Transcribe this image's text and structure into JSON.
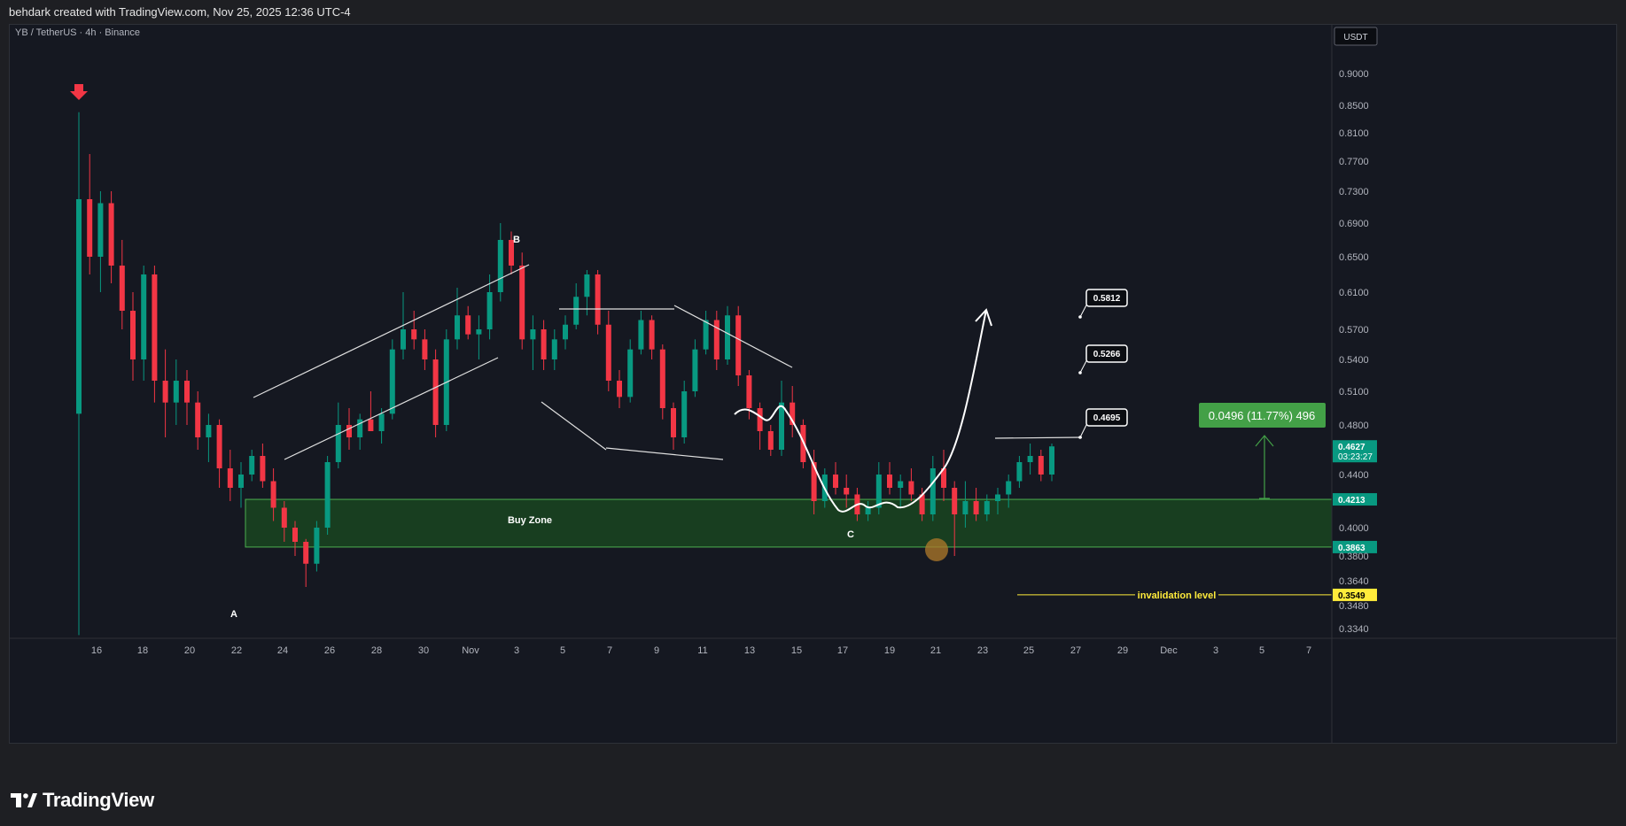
{
  "header": {
    "attribution": "behdark created with TradingView.com, Nov 25, 2025 12:36 UTC-4"
  },
  "footer": {
    "brand": "TradingView"
  },
  "chart_data": {
    "type": "candlestick",
    "symbol": "YB / TetherUS · 4h · Binance",
    "currency_button": "USDT",
    "price_axis_labels": [
      "0.9000",
      "0.8500",
      "0.8100",
      "0.7700",
      "0.7300",
      "0.6900",
      "0.6500",
      "0.6100",
      "0.5700",
      "0.5400",
      "0.5100",
      "0.4800",
      "0.4400",
      "0.4000",
      "0.3800",
      "0.3640",
      "0.3480",
      "0.3340"
    ],
    "time_axis_labels": [
      "16",
      "18",
      "20",
      "22",
      "24",
      "26",
      "28",
      "30",
      "Nov",
      "3",
      "5",
      "7",
      "9",
      "11",
      "13",
      "15",
      "17",
      "19",
      "21",
      "23",
      "25",
      "27",
      "29",
      "Dec",
      "3",
      "5",
      "7"
    ],
    "price_tags": [
      {
        "value": "0.4627",
        "sub": "03:23:27",
        "color": "#089981"
      },
      {
        "value": "0.4213",
        "color": "#089981"
      },
      {
        "value": "0.3863",
        "color": "#089981"
      },
      {
        "value": "0.3549",
        "color": "#ffeb3b"
      }
    ],
    "annotations": {
      "wave_labels": [
        "A",
        "B",
        "C"
      ],
      "buy_zone_label": "Buy Zone",
      "buy_zone_range": [
        0.3863,
        0.4213
      ],
      "invalidation_label": "invalidation level",
      "invalidation_price": 0.3549,
      "targets": [
        "0.4695",
        "0.5266",
        "0.5812"
      ],
      "measure_label": "0.0496 (11.77%) 496"
    },
    "colors": {
      "up": "#089981",
      "down": "#f23645",
      "background": "#151821",
      "zone": "#1b5e20",
      "accent": "#43a047",
      "invalidation": "#ffeb3b"
    },
    "candles": [
      [
        0.49,
        0.84,
        0.33,
        0.72
      ],
      [
        0.72,
        0.78,
        0.63,
        0.65
      ],
      [
        0.65,
        0.73,
        0.61,
        0.715
      ],
      [
        0.715,
        0.73,
        0.62,
        0.64
      ],
      [
        0.64,
        0.67,
        0.57,
        0.59
      ],
      [
        0.59,
        0.61,
        0.52,
        0.54
      ],
      [
        0.54,
        0.64,
        0.52,
        0.63
      ],
      [
        0.63,
        0.64,
        0.5,
        0.52
      ],
      [
        0.52,
        0.55,
        0.47,
        0.5
      ],
      [
        0.5,
        0.54,
        0.48,
        0.52
      ],
      [
        0.52,
        0.53,
        0.48,
        0.5
      ],
      [
        0.5,
        0.51,
        0.46,
        0.47
      ],
      [
        0.47,
        0.49,
        0.45,
        0.48
      ],
      [
        0.48,
        0.485,
        0.43,
        0.445
      ],
      [
        0.445,
        0.46,
        0.42,
        0.43
      ],
      [
        0.43,
        0.45,
        0.415,
        0.44
      ],
      [
        0.44,
        0.46,
        0.435,
        0.455
      ],
      [
        0.455,
        0.465,
        0.43,
        0.435
      ],
      [
        0.435,
        0.445,
        0.405,
        0.415
      ],
      [
        0.415,
        0.42,
        0.39,
        0.4
      ],
      [
        0.4,
        0.405,
        0.38,
        0.39
      ],
      [
        0.39,
        0.392,
        0.36,
        0.375
      ],
      [
        0.375,
        0.405,
        0.37,
        0.4
      ],
      [
        0.4,
        0.455,
        0.395,
        0.45
      ],
      [
        0.45,
        0.5,
        0.445,
        0.48
      ],
      [
        0.48,
        0.495,
        0.46,
        0.47
      ],
      [
        0.47,
        0.49,
        0.46,
        0.485
      ],
      [
        0.485,
        0.51,
        0.475,
        0.475
      ],
      [
        0.475,
        0.495,
        0.465,
        0.49
      ],
      [
        0.49,
        0.56,
        0.485,
        0.55
      ],
      [
        0.55,
        0.61,
        0.54,
        0.57
      ],
      [
        0.57,
        0.59,
        0.55,
        0.56
      ],
      [
        0.56,
        0.57,
        0.53,
        0.54
      ],
      [
        0.54,
        0.55,
        0.47,
        0.48
      ],
      [
        0.48,
        0.57,
        0.475,
        0.56
      ],
      [
        0.56,
        0.615,
        0.55,
        0.585
      ],
      [
        0.585,
        0.595,
        0.56,
        0.565
      ],
      [
        0.565,
        0.585,
        0.54,
        0.57
      ],
      [
        0.57,
        0.63,
        0.56,
        0.61
      ],
      [
        0.61,
        0.69,
        0.6,
        0.67
      ],
      [
        0.67,
        0.68,
        0.63,
        0.64
      ],
      [
        0.64,
        0.655,
        0.55,
        0.56
      ],
      [
        0.56,
        0.585,
        0.53,
        0.57
      ],
      [
        0.57,
        0.58,
        0.53,
        0.54
      ],
      [
        0.54,
        0.57,
        0.53,
        0.56
      ],
      [
        0.56,
        0.585,
        0.55,
        0.575
      ],
      [
        0.575,
        0.62,
        0.57,
        0.605
      ],
      [
        0.605,
        0.635,
        0.585,
        0.63
      ],
      [
        0.63,
        0.635,
        0.565,
        0.575
      ],
      [
        0.575,
        0.59,
        0.51,
        0.52
      ],
      [
        0.52,
        0.53,
        0.495,
        0.505
      ],
      [
        0.505,
        0.56,
        0.5,
        0.55
      ],
      [
        0.55,
        0.59,
        0.545,
        0.58
      ],
      [
        0.58,
        0.585,
        0.54,
        0.55
      ],
      [
        0.55,
        0.555,
        0.485,
        0.495
      ],
      [
        0.495,
        0.5,
        0.46,
        0.47
      ],
      [
        0.47,
        0.52,
        0.465,
        0.51
      ],
      [
        0.51,
        0.56,
        0.505,
        0.55
      ],
      [
        0.55,
        0.59,
        0.545,
        0.58
      ],
      [
        0.58,
        0.59,
        0.53,
        0.54
      ],
      [
        0.54,
        0.595,
        0.535,
        0.585
      ],
      [
        0.585,
        0.595,
        0.515,
        0.525
      ],
      [
        0.525,
        0.53,
        0.485,
        0.495
      ],
      [
        0.495,
        0.5,
        0.46,
        0.475
      ],
      [
        0.475,
        0.48,
        0.455,
        0.46
      ],
      [
        0.46,
        0.52,
        0.455,
        0.5
      ],
      [
        0.5,
        0.515,
        0.47,
        0.48
      ],
      [
        0.48,
        0.485,
        0.445,
        0.45
      ],
      [
        0.45,
        0.46,
        0.41,
        0.42
      ],
      [
        0.42,
        0.445,
        0.415,
        0.44
      ],
      [
        0.44,
        0.45,
        0.425,
        0.43
      ],
      [
        0.43,
        0.44,
        0.415,
        0.425
      ],
      [
        0.425,
        0.43,
        0.405,
        0.41
      ],
      [
        0.41,
        0.42,
        0.405,
        0.415
      ],
      [
        0.415,
        0.45,
        0.41,
        0.44
      ],
      [
        0.44,
        0.45,
        0.425,
        0.43
      ],
      [
        0.43,
        0.44,
        0.415,
        0.435
      ],
      [
        0.435,
        0.445,
        0.42,
        0.425
      ],
      [
        0.425,
        0.43,
        0.405,
        0.41
      ],
      [
        0.41,
        0.455,
        0.405,
        0.445
      ],
      [
        0.445,
        0.46,
        0.42,
        0.43
      ],
      [
        0.43,
        0.435,
        0.38,
        0.41
      ],
      [
        0.41,
        0.435,
        0.4,
        0.42
      ],
      [
        0.42,
        0.43,
        0.405,
        0.41
      ],
      [
        0.41,
        0.425,
        0.405,
        0.42
      ],
      [
        0.42,
        0.43,
        0.41,
        0.425
      ],
      [
        0.425,
        0.44,
        0.415,
        0.435
      ],
      [
        0.435,
        0.455,
        0.43,
        0.45
      ],
      [
        0.45,
        0.465,
        0.44,
        0.455
      ],
      [
        0.455,
        0.46,
        0.435,
        0.44
      ],
      [
        0.44,
        0.465,
        0.435,
        0.4627
      ]
    ]
  }
}
